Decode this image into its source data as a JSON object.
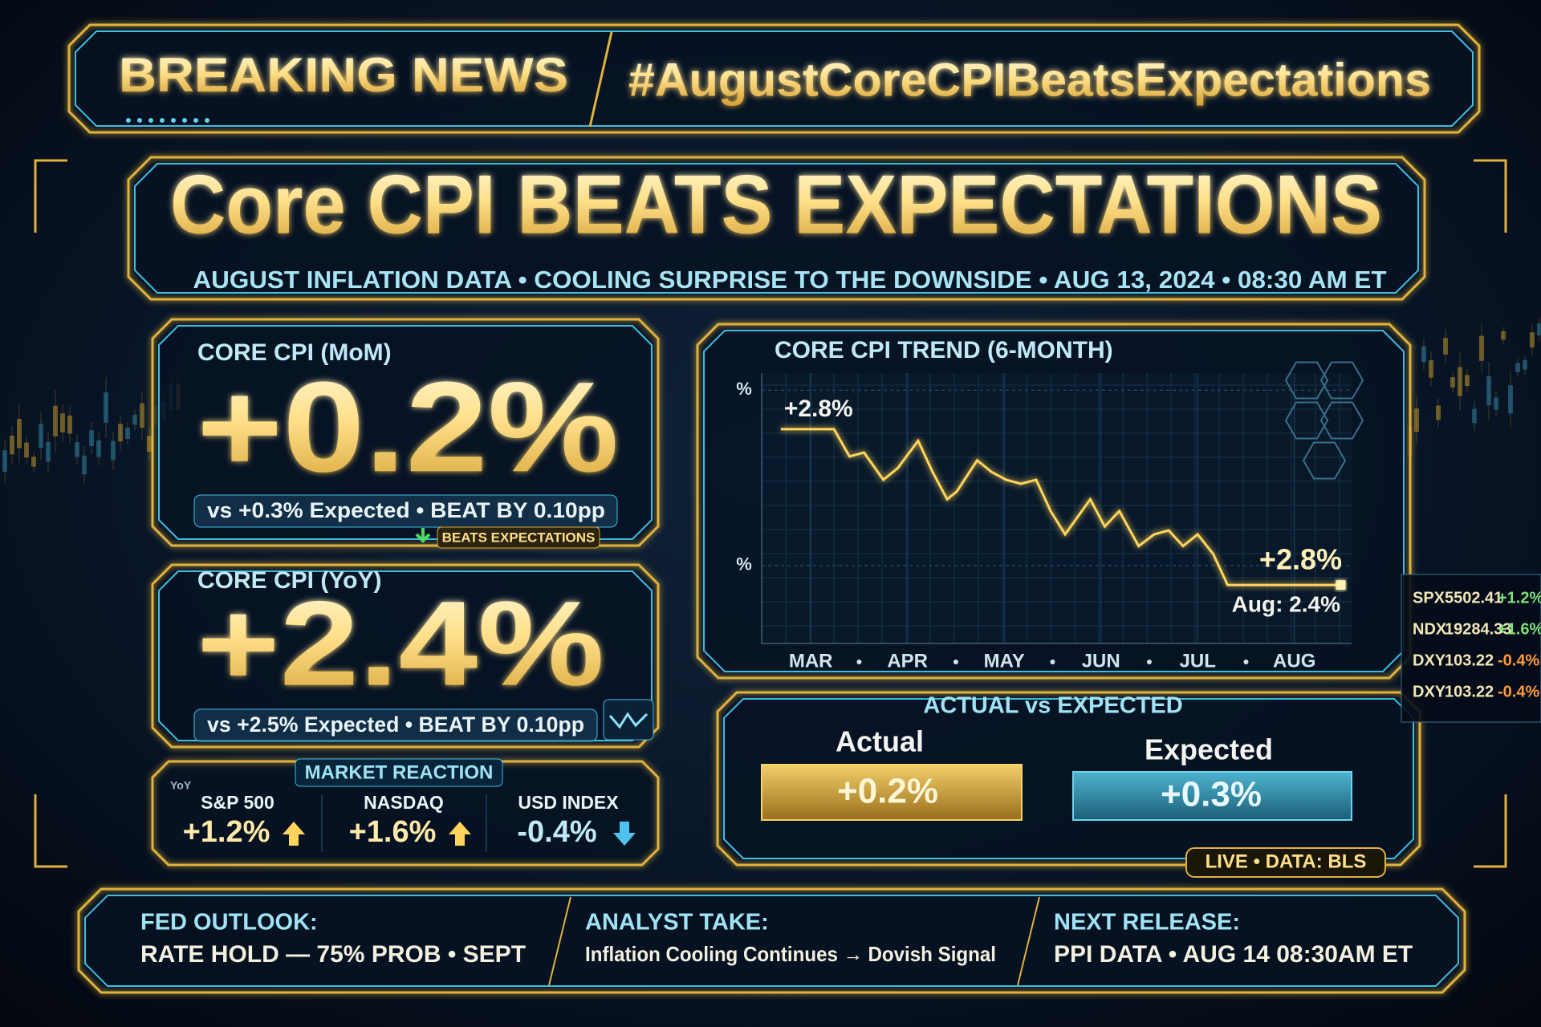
{
  "header": {
    "label": "BREAKING NEWS",
    "hashtag": "#AugustCoreCPIBeatsExpectations"
  },
  "headline": {
    "title": "Core CPI BEATS EXPECTATIONS",
    "subtitle": "AUGUST INFLATION DATA • COOLING SURPRISE TO THE DOWNSIDE • AUG 13, 2024 • 08:30 AM ET"
  },
  "cards": [
    {
      "label": "CORE CPI (MoM)",
      "value": "+0.2%",
      "comparison": "vs +0.3% Expected  •  BEAT BY 0.10pp",
      "badge": "BEATS EXPECTATIONS"
    },
    {
      "label": "CORE CPI (YoY)",
      "value": "+2.4%",
      "comparison": "vs +2.5% Expected  •  BEAT BY 0.10pp"
    }
  ],
  "market_reaction": {
    "title": "MARKET REACTION",
    "note": "YoY",
    "items": [
      {
        "name": "S&P 500",
        "value": "+1.2%"
      },
      {
        "name": "NASDAQ",
        "value": "+1.6%"
      },
      {
        "name": "USD INDEX",
        "value": "-0.4%"
      }
    ]
  },
  "chart_data": {
    "type": "line",
    "title": "CORE CPI TREND (6-MONTH)",
    "color": "#ffd45a",
    "x": [
      2.69,
      3.24,
      3.4,
      3.55,
      3.75,
      3.9,
      4.11,
      4.26,
      4.41,
      4.51,
      4.72,
      4.87,
      5.02,
      5.17,
      5.33,
      5.48,
      5.63,
      5.89,
      6.04,
      6.19,
      6.39,
      6.55,
      6.7,
      6.85,
      7.0,
      7.16,
      7.31,
      8.48
    ],
    "values": [
      2.8,
      2.8,
      2.73,
      2.74,
      2.67,
      2.7,
      2.77,
      2.69,
      2.62,
      2.64,
      2.72,
      2.69,
      2.67,
      2.66,
      2.67,
      2.59,
      2.53,
      2.62,
      2.55,
      2.59,
      2.5,
      2.53,
      2.54,
      2.5,
      2.53,
      2.48,
      2.4,
      2.4
    ],
    "xlim": [
      2.65,
      8.55
    ],
    "xticks": [
      {
        "value": 3,
        "label": "MAR"
      },
      {
        "value": 4,
        "label": "APR"
      },
      {
        "value": 5,
        "label": "MAY"
      },
      {
        "value": 6,
        "label": "JUN"
      },
      {
        "value": 7,
        "label": "JUL"
      },
      {
        "value": 8,
        "label": "AUG"
      }
    ],
    "ylim": [
      2.25,
      2.95
    ],
    "yticks": [
      {
        "value": 2.9,
        "label": "%"
      },
      {
        "value": 2.45,
        "label": "%"
      }
    ],
    "grid": true,
    "annotations": [
      "+2.8%",
      "+2.8%",
      "Aug: 2.4%"
    ]
  },
  "comparison": {
    "title": "ACTUAL vs EXPECTED",
    "items": [
      {
        "label": "Actual",
        "value": "+0.2%"
      },
      {
        "label": "Expected",
        "value": "+0.3%"
      }
    ],
    "source": "LIVE • DATA: BLS"
  },
  "ticker": [
    [
      "SPX",
      "5502.41",
      "+1.2%"
    ],
    [
      "NDX",
      "19284.33",
      "+1.6%"
    ],
    [
      "DXY",
      "103.22",
      "-0.4%"
    ],
    [
      "DXY",
      "103.22",
      "-0.4%"
    ]
  ],
  "footer": [
    {
      "title": "FED OUTLOOK:",
      "text": "RATE HOLD — 75% PROB • SEPT"
    },
    {
      "title": "ANALYST TAKE:",
      "text": "Inflation Cooling Continues → Dovish Signal"
    },
    {
      "title": "NEXT RELEASE:",
      "text": "PPI DATA  •  AUG 14 08:30AM ET"
    }
  ]
}
